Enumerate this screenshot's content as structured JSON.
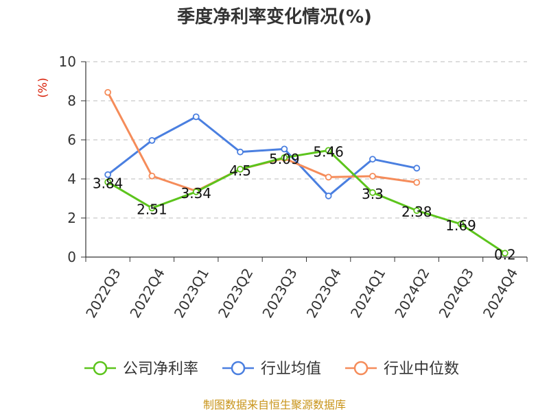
{
  "chart_data": {
    "type": "line",
    "title": "季度净利率变化情况(%)",
    "ylabel": "(%)",
    "ylim": [
      0,
      10
    ],
    "yticks": [
      0,
      2,
      4,
      6,
      8,
      10
    ],
    "grid": true,
    "legend_position": "bottom",
    "categories": [
      "2022Q3",
      "2022Q4",
      "2023Q1",
      "2023Q2",
      "2023Q3",
      "2023Q4",
      "2024Q1",
      "2024Q2",
      "2024Q3",
      "2024Q4"
    ],
    "series": [
      {
        "name": "公司净利率",
        "color": "#5cc41c",
        "values": [
          3.84,
          2.51,
          3.34,
          4.5,
          5.09,
          5.46,
          3.3,
          2.38,
          1.69,
          0.2
        ],
        "labels": [
          "3.84",
          "2.51",
          "3.34",
          "4.5",
          "5.09",
          "5.46",
          "3.3",
          "2.38",
          "1.69",
          "0.2"
        ]
      },
      {
        "name": "行业均值",
        "color": "#4a7fe0",
        "values": [
          4.22,
          5.97,
          7.18,
          5.38,
          5.53,
          3.13,
          5.01,
          4.55,
          null,
          null
        ]
      },
      {
        "name": "行业中位数",
        "color": "#f58c5a",
        "values": [
          8.43,
          4.15,
          3.38,
          4.5,
          5.05,
          4.09,
          4.14,
          3.82,
          null,
          null
        ]
      }
    ]
  },
  "source": "制图数据来自恒生聚源数据库"
}
